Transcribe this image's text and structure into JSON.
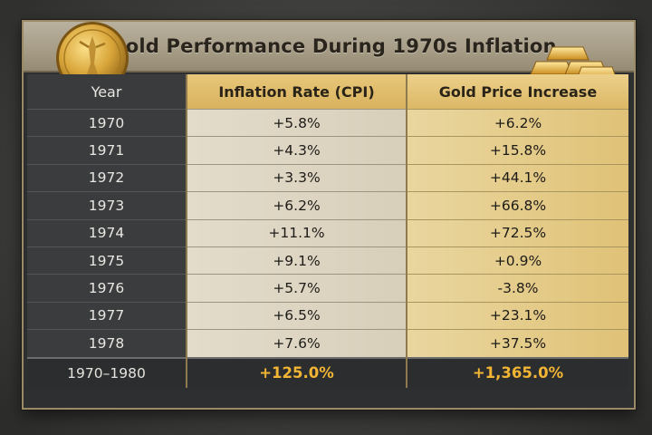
{
  "chart_data": {
    "type": "table",
    "title": "Gold Performance During 1970s Inflation",
    "columns": [
      "Year",
      "Inflation Rate (CPI)",
      "Gold Price Increase"
    ],
    "rows": [
      {
        "year": "1970",
        "cpi": "+5.8%",
        "gold": "+6.2%"
      },
      {
        "year": "1971",
        "cpi": "+4.3%",
        "gold": "+15.8%"
      },
      {
        "year": "1972",
        "cpi": "+3.3%",
        "gold": "+44.1%"
      },
      {
        "year": "1973",
        "cpi": "+6.2%",
        "gold": "+66.8%"
      },
      {
        "year": "1974",
        "cpi": "+11.1%",
        "gold": "+72.5%"
      },
      {
        "year": "1975",
        "cpi": "+9.1%",
        "gold": "+0.9%"
      },
      {
        "year": "1976",
        "cpi": "+5.7%",
        "gold": "-3.8%"
      },
      {
        "year": "1977",
        "cpi": "+6.5%",
        "gold": "+23.1%"
      },
      {
        "year": "1978",
        "cpi": "+7.6%",
        "gold": "+37.5%"
      }
    ],
    "total": {
      "year": "1970–1980",
      "cpi": "+125.0%",
      "gold": "+1,365.0%"
    }
  },
  "colors": {
    "accent_gold": "#f2b534",
    "panel": "#2e2f31",
    "title_bg": "#a69c86"
  },
  "icons": [
    "gold-coin-icon",
    "gold-bars-icon"
  ]
}
